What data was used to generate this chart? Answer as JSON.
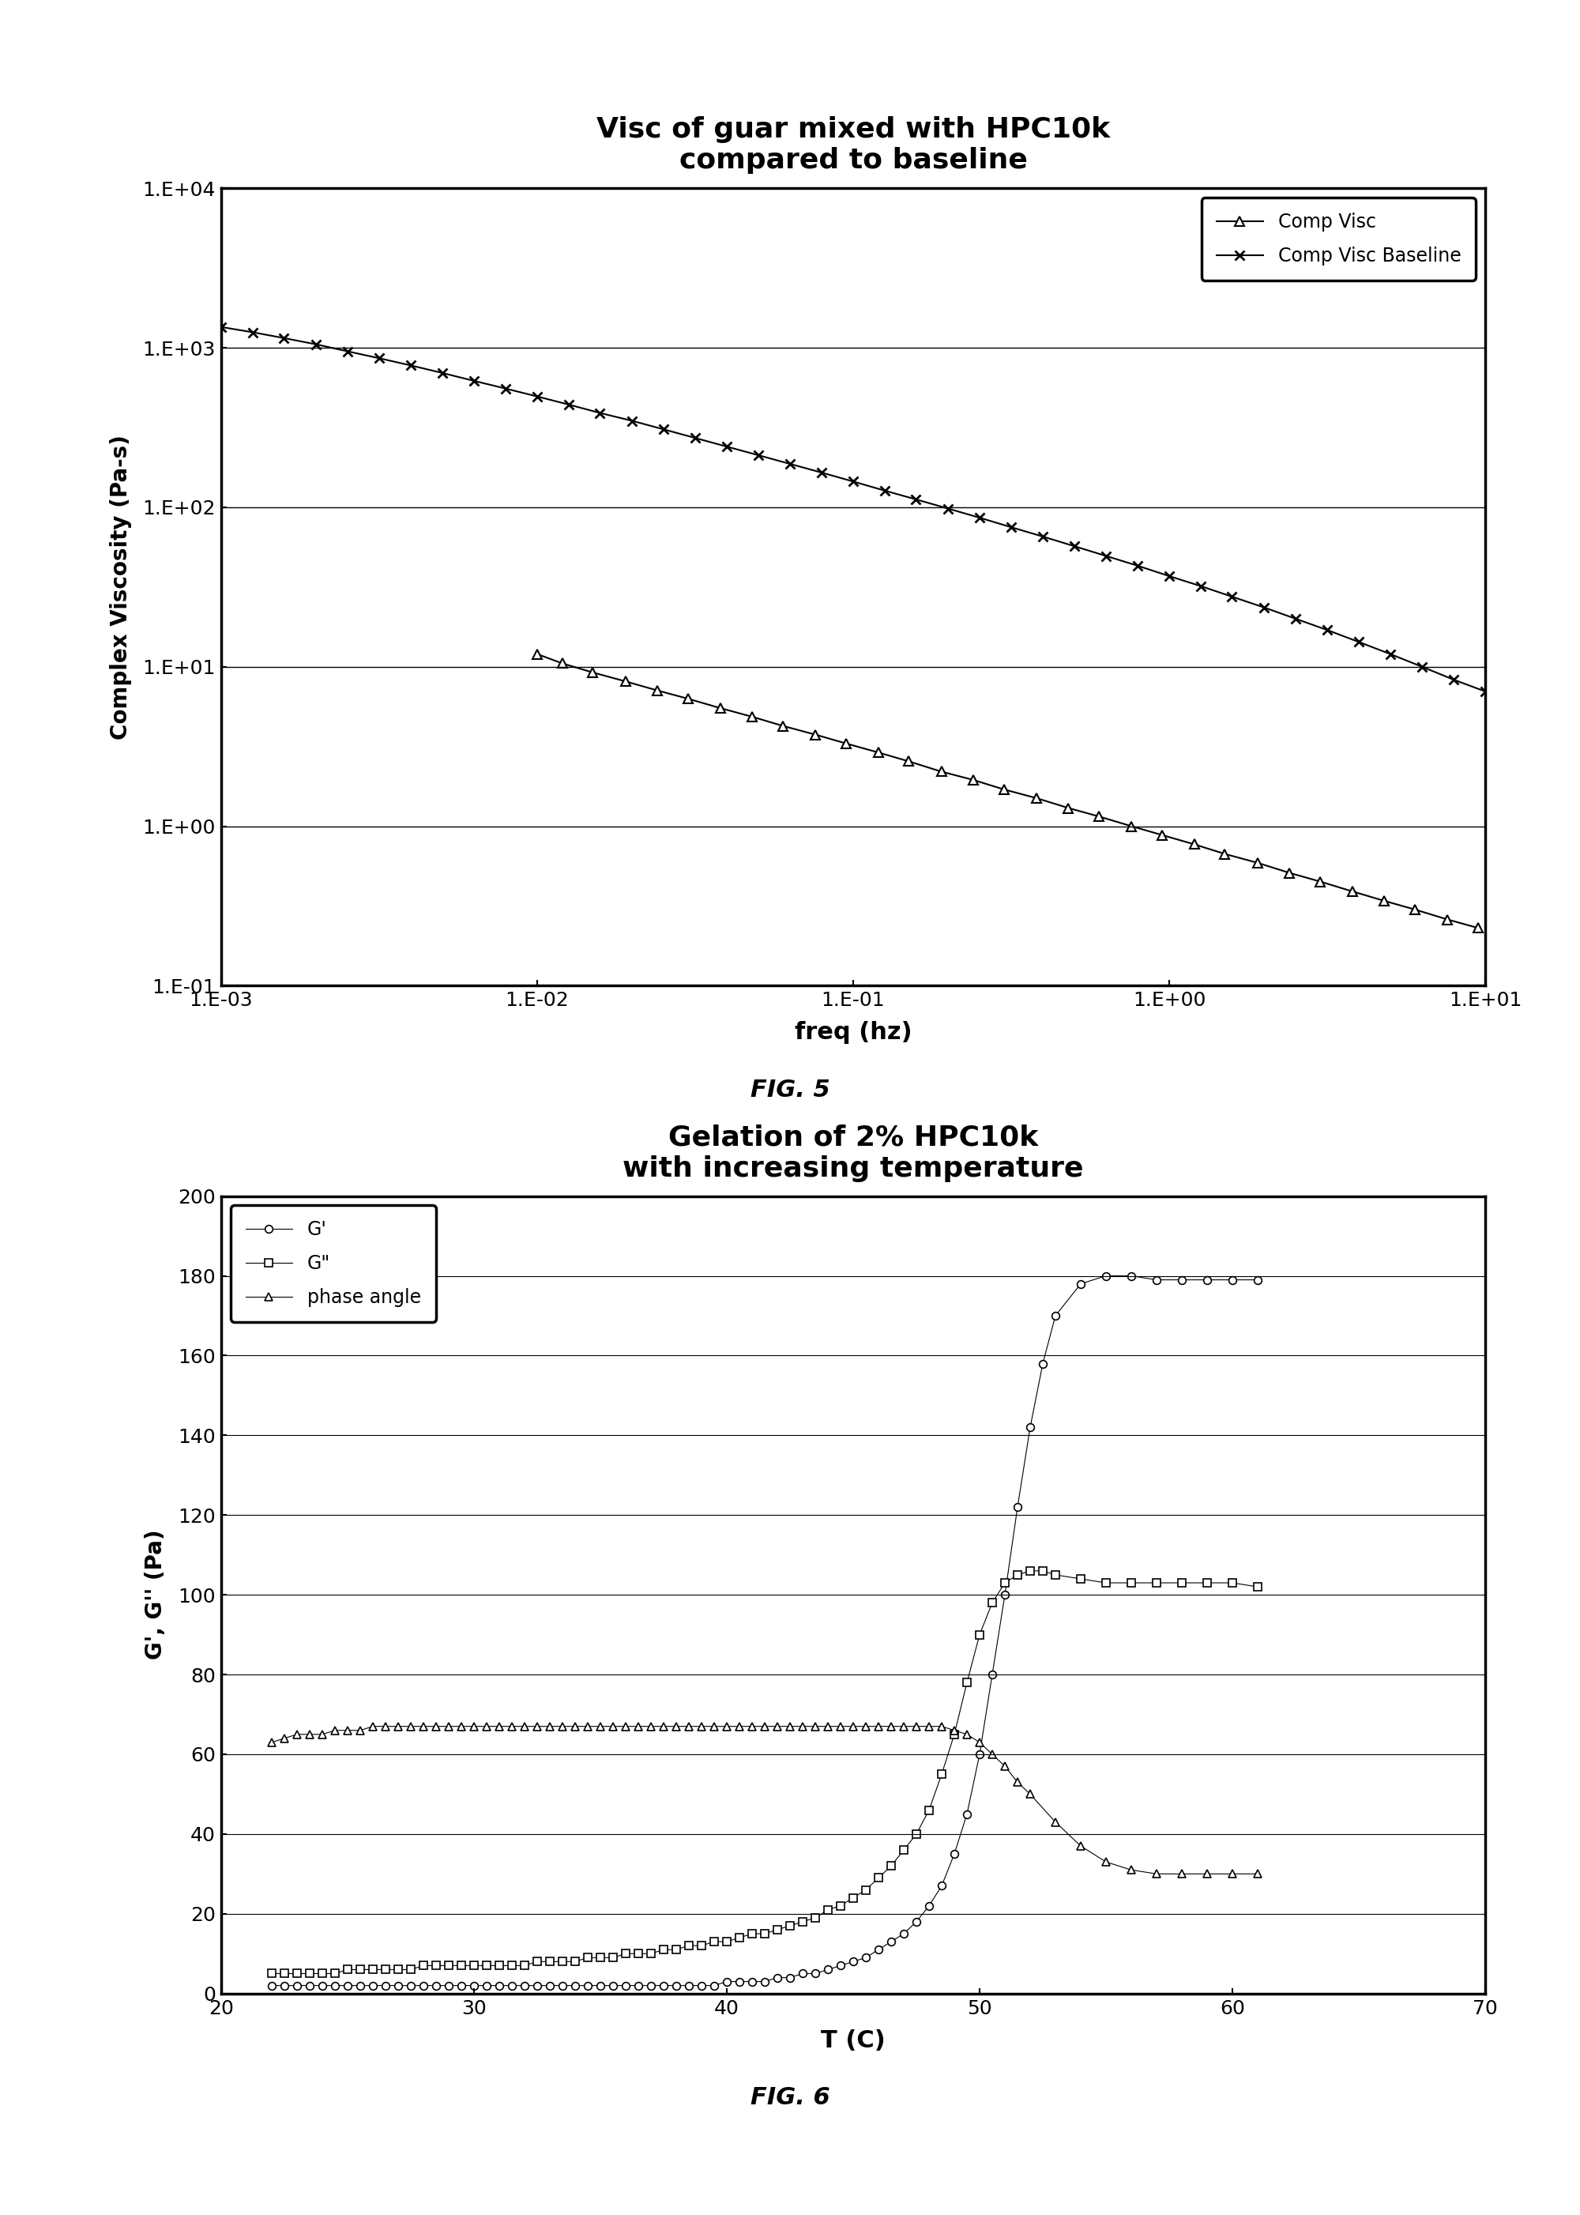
{
  "fig5": {
    "title": "Visc of guar mixed with HPC10k\ncompared to baseline",
    "xlabel": "freq (hz)",
    "ylabel": "Complex Viscosity (Pa-s)",
    "comp_visc_x": [
      0.01,
      0.012,
      0.015,
      0.019,
      0.024,
      0.03,
      0.038,
      0.048,
      0.06,
      0.076,
      0.095,
      0.12,
      0.15,
      0.19,
      0.24,
      0.3,
      0.38,
      0.48,
      0.6,
      0.76,
      0.95,
      1.2,
      1.5,
      1.9,
      2.4,
      3.0,
      3.8,
      4.8,
      6.0,
      7.6,
      9.5
    ],
    "comp_visc_y": [
      12,
      10.5,
      9.2,
      8.1,
      7.1,
      6.3,
      5.5,
      4.85,
      4.25,
      3.75,
      3.3,
      2.9,
      2.55,
      2.2,
      1.95,
      1.7,
      1.5,
      1.3,
      1.15,
      1.0,
      0.88,
      0.77,
      0.67,
      0.59,
      0.51,
      0.45,
      0.39,
      0.34,
      0.3,
      0.26,
      0.23
    ],
    "comp_visc_baseline_x": [
      0.001,
      0.00126,
      0.00158,
      0.002,
      0.00251,
      0.00316,
      0.00398,
      0.00501,
      0.00631,
      0.00794,
      0.01,
      0.0126,
      0.0158,
      0.02,
      0.0251,
      0.0316,
      0.0398,
      0.0501,
      0.0631,
      0.0794,
      0.1,
      0.126,
      0.158,
      0.2,
      0.251,
      0.316,
      0.398,
      0.501,
      0.631,
      0.794,
      1.0,
      1.26,
      1.58,
      2.0,
      2.51,
      3.16,
      3.98,
      5.01,
      6.31,
      7.94,
      10.0
    ],
    "comp_visc_baseline_y": [
      1350,
      1250,
      1150,
      1050,
      950,
      860,
      775,
      695,
      620,
      555,
      495,
      440,
      390,
      348,
      308,
      272,
      240,
      212,
      187,
      165,
      145,
      127,
      112,
      98,
      86,
      75,
      65.5,
      57,
      49.5,
      43,
      37,
      32,
      27.5,
      23.5,
      20,
      17,
      14.3,
      12,
      10,
      8.3,
      7.0
    ]
  },
  "fig6": {
    "title": "Gelation of 2% HPC10k\nwith increasing temperature",
    "xlabel": "T (C)",
    "ylabel": "G', G'' (Pa)",
    "xlim": [
      20,
      70
    ],
    "ylim": [
      0,
      200
    ],
    "yticks": [
      0,
      20,
      40,
      60,
      80,
      100,
      120,
      140,
      160,
      180,
      200
    ],
    "xticks": [
      20,
      30,
      40,
      50,
      60,
      70
    ],
    "Gprime_x": [
      22,
      22.5,
      23,
      23.5,
      24,
      24.5,
      25,
      25.5,
      26,
      26.5,
      27,
      27.5,
      28,
      28.5,
      29,
      29.5,
      30,
      30.5,
      31,
      31.5,
      32,
      32.5,
      33,
      33.5,
      34,
      34.5,
      35,
      35.5,
      36,
      36.5,
      37,
      37.5,
      38,
      38.5,
      39,
      39.5,
      40,
      40.5,
      41,
      41.5,
      42,
      42.5,
      43,
      43.5,
      44,
      44.5,
      45,
      45.5,
      46,
      46.5,
      47,
      47.5,
      48,
      48.5,
      49,
      49.5,
      50,
      50.5,
      51,
      51.5,
      52,
      52.5,
      53,
      54,
      55,
      56,
      57,
      58,
      59,
      60,
      61
    ],
    "Gprime_y": [
      2,
      2,
      2,
      2,
      2,
      2,
      2,
      2,
      2,
      2,
      2,
      2,
      2,
      2,
      2,
      2,
      2,
      2,
      2,
      2,
      2,
      2,
      2,
      2,
      2,
      2,
      2,
      2,
      2,
      2,
      2,
      2,
      2,
      2,
      2,
      2,
      3,
      3,
      3,
      3,
      4,
      4,
      5,
      5,
      6,
      7,
      8,
      9,
      11,
      13,
      15,
      18,
      22,
      27,
      35,
      45,
      60,
      80,
      100,
      122,
      142,
      158,
      170,
      178,
      180,
      180,
      179,
      179,
      179,
      179,
      179
    ],
    "Gdprime_x": [
      22,
      22.5,
      23,
      23.5,
      24,
      24.5,
      25,
      25.5,
      26,
      26.5,
      27,
      27.5,
      28,
      28.5,
      29,
      29.5,
      30,
      30.5,
      31,
      31.5,
      32,
      32.5,
      33,
      33.5,
      34,
      34.5,
      35,
      35.5,
      36,
      36.5,
      37,
      37.5,
      38,
      38.5,
      39,
      39.5,
      40,
      40.5,
      41,
      41.5,
      42,
      42.5,
      43,
      43.5,
      44,
      44.5,
      45,
      45.5,
      46,
      46.5,
      47,
      47.5,
      48,
      48.5,
      49,
      49.5,
      50,
      50.5,
      51,
      51.5,
      52,
      52.5,
      53,
      54,
      55,
      56,
      57,
      58,
      59,
      60,
      61
    ],
    "Gdprime_y": [
      5,
      5,
      5,
      5,
      5,
      5,
      6,
      6,
      6,
      6,
      6,
      6,
      7,
      7,
      7,
      7,
      7,
      7,
      7,
      7,
      7,
      8,
      8,
      8,
      8,
      9,
      9,
      9,
      10,
      10,
      10,
      11,
      11,
      12,
      12,
      13,
      13,
      14,
      15,
      15,
      16,
      17,
      18,
      19,
      21,
      22,
      24,
      26,
      29,
      32,
      36,
      40,
      46,
      55,
      65,
      78,
      90,
      98,
      103,
      105,
      106,
      106,
      105,
      104,
      103,
      103,
      103,
      103,
      103,
      103,
      102
    ],
    "phase_x": [
      22,
      22.5,
      23,
      23.5,
      24,
      24.5,
      25,
      25.5,
      26,
      26.5,
      27,
      27.5,
      28,
      28.5,
      29,
      29.5,
      30,
      30.5,
      31,
      31.5,
      32,
      32.5,
      33,
      33.5,
      34,
      34.5,
      35,
      35.5,
      36,
      36.5,
      37,
      37.5,
      38,
      38.5,
      39,
      39.5,
      40,
      40.5,
      41,
      41.5,
      42,
      42.5,
      43,
      43.5,
      44,
      44.5,
      45,
      45.5,
      46,
      46.5,
      47,
      47.5,
      48,
      48.5,
      49,
      49.5,
      50,
      50.5,
      51,
      51.5,
      52,
      53,
      54,
      55,
      56,
      57,
      58,
      59,
      60,
      61
    ],
    "phase_y": [
      63,
      64,
      65,
      65,
      65,
      66,
      66,
      66,
      67,
      67,
      67,
      67,
      67,
      67,
      67,
      67,
      67,
      67,
      67,
      67,
      67,
      67,
      67,
      67,
      67,
      67,
      67,
      67,
      67,
      67,
      67,
      67,
      67,
      67,
      67,
      67,
      67,
      67,
      67,
      67,
      67,
      67,
      67,
      67,
      67,
      67,
      67,
      67,
      67,
      67,
      67,
      67,
      67,
      67,
      66,
      65,
      63,
      60,
      57,
      53,
      50,
      43,
      37,
      33,
      31,
      30,
      30,
      30,
      30,
      30
    ]
  }
}
